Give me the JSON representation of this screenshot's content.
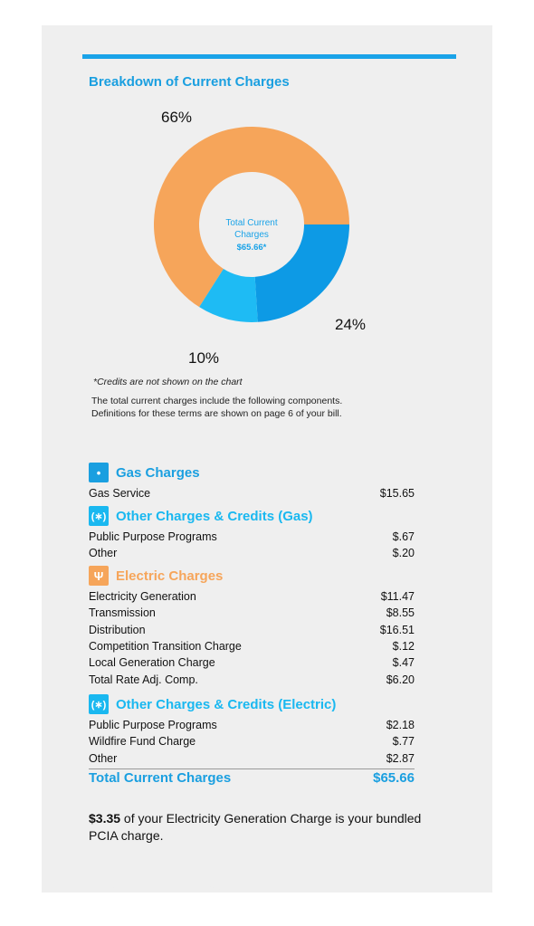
{
  "heading": "Breakdown of Current Charges",
  "chart_data": {
    "type": "pie",
    "donut": true,
    "center_label": [
      "Total Current",
      "Charges",
      "$65.66*"
    ],
    "slices": [
      {
        "label": "66%",
        "value": 66,
        "color": "#f6a55a"
      },
      {
        "label": "24%",
        "value": 24,
        "color": "#0d9ae5"
      },
      {
        "label": "10%",
        "value": 10,
        "color": "#1ebbf4"
      }
    ]
  },
  "footnote": "*Credits are not shown on the chart",
  "description": "The total current charges include the following components. Definitions for these terms are shown on page 6 of your bill.",
  "sections": [
    {
      "title": "Gas Charges",
      "icon": "flame-icon",
      "glyph": "•",
      "color": "#1a9fe0",
      "items": [
        {
          "label": "Gas Service",
          "amount": "$15.65"
        }
      ]
    },
    {
      "title": "Other Charges & Credits (Gas)",
      "icon": "asterisk-icon",
      "glyph": "(∗)",
      "color": "#1ab8f0",
      "items": [
        {
          "label": "Public Purpose Programs",
          "amount": "$.67"
        },
        {
          "label": "Other",
          "amount": "$.20"
        }
      ]
    },
    {
      "title": "Electric Charges",
      "icon": "plug-icon",
      "glyph": "Ψ",
      "color": "#f6a55a",
      "items": [
        {
          "label": "Electricity Generation",
          "amount": "$11.47"
        },
        {
          "label": "Transmission",
          "amount": "$8.55"
        },
        {
          "label": "Distribution",
          "amount": "$16.51"
        },
        {
          "label": "Competition Transition Charge",
          "amount": "$.12"
        },
        {
          "label": "Local Generation Charge",
          "amount": "$.47"
        },
        {
          "label": "Total Rate Adj. Comp.",
          "amount": "$6.20"
        }
      ]
    },
    {
      "title": "Other Charges & Credits (Electric)",
      "icon": "asterisk-icon",
      "glyph": "(∗)",
      "color": "#1ab8f0",
      "items": [
        {
          "label": "Public Purpose Programs",
          "amount": "$2.18"
        },
        {
          "label": "Wildfire Fund Charge",
          "amount": "$.77"
        },
        {
          "label": "Other",
          "amount": "$2.87"
        }
      ]
    }
  ],
  "total": {
    "label": "Total Current Charges",
    "amount": "$65.66"
  },
  "pcia": {
    "amount": "$3.35",
    "text": " of your Electricity Generation Charge is your bundled PCIA charge."
  }
}
